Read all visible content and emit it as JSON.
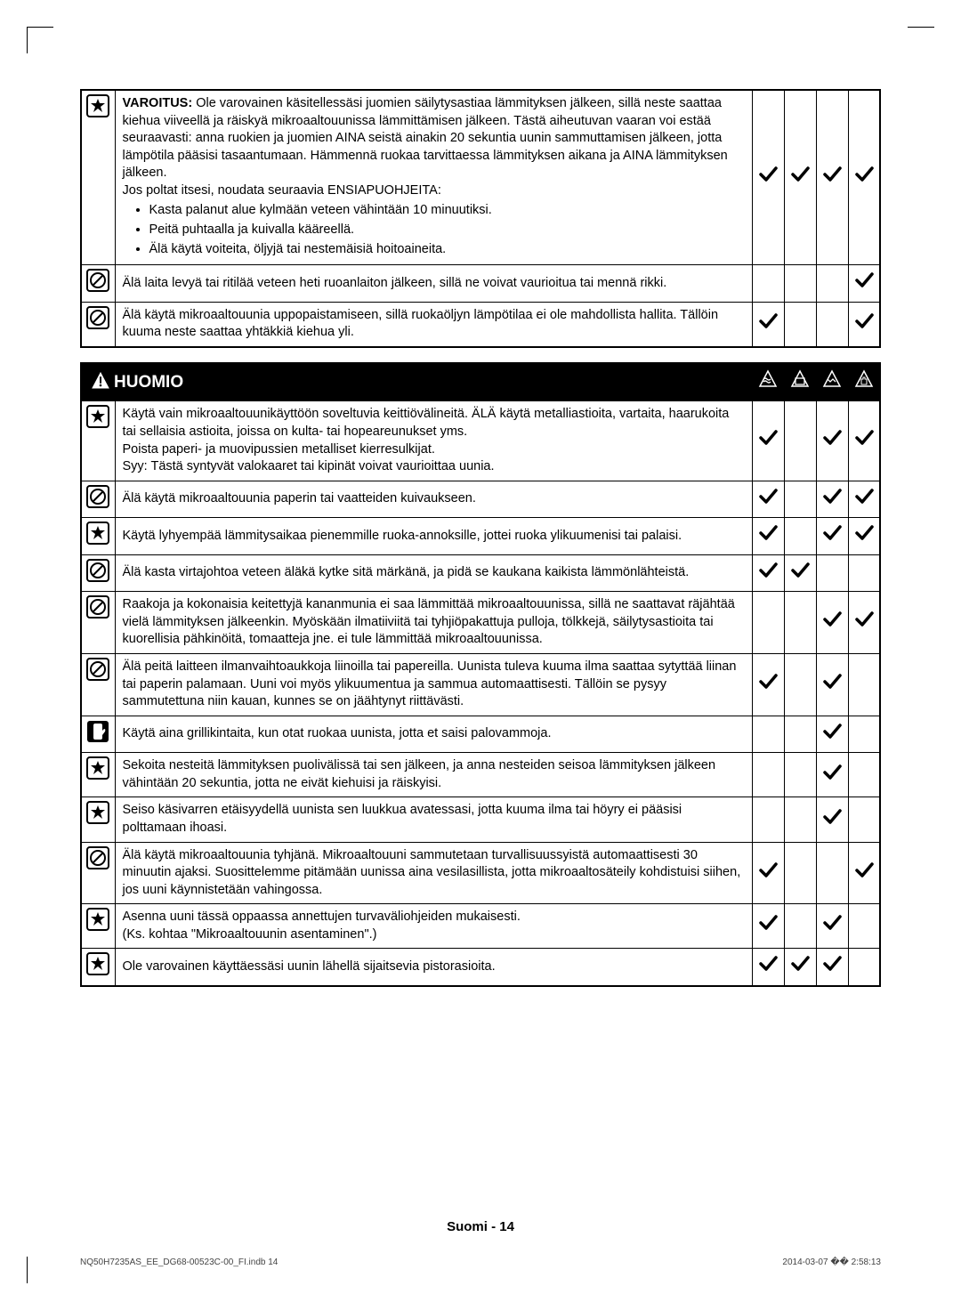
{
  "colors": {
    "border": "#000000",
    "bg": "#ffffff",
    "headerBg": "#000000",
    "headerFg": "#ffffff",
    "checkStroke": "#000000"
  },
  "t1": {
    "rows": [
      {
        "icon": "star",
        "html": "<b>VAROITUS:</b> Ole varovainen käsitellessäsi juomien säilytysastiaa lämmityksen jälkeen, sillä neste saattaa kiehua viiveellä ja räiskyä mikroaaltouunissa lämmittämisen jälkeen. Tästä aiheutuvan vaaran voi estää seuraavasti: anna ruokien ja juomien AINA seistä ainakin 20 sekuntia uunin sammuttamisen jälkeen, jotta lämpötila pääsisi tasaantumaan. Hämmennä ruokaa tarvittaessa lämmityksen aikana ja AINA lämmityksen jälkeen.<br>Jos poltat itsesi, noudata seuraavia ENSIAPUOHJEITA:",
        "bullets": [
          "Kasta palanut alue kylmään veteen vähintään 10 minuutiksi.",
          "Peitä puhtaalla ja kuivalla kääreellä.",
          "Älä käytä voiteita, öljyjä tai nestemäisiä hoitoaineita."
        ],
        "checks": [
          true,
          true,
          true,
          true
        ]
      },
      {
        "icon": "prohibit",
        "html": "Älä laita levyä tai ritilää veteen heti ruoanlaiton jälkeen, sillä ne voivat vaurioitua tai mennä rikki.",
        "checks": [
          false,
          false,
          false,
          true
        ]
      },
      {
        "icon": "prohibit",
        "html": "Älä käytä mikroaaltouunia uppopaistamiseen, sillä ruokaöljyn lämpötilaa ei ole mahdollista hallita. Tällöin kuuma neste saattaa yhtäkkiä kiehua yli.",
        "checks": [
          true,
          false,
          false,
          true
        ]
      }
    ]
  },
  "t2": {
    "header": "HUOMIO",
    "rows": [
      {
        "icon": "star",
        "html": "Käytä vain mikroaaltouunikäyttöön soveltuvia keittiövälineitä. ÄLÄ käytä metalliastioita, vartaita, haarukoita tai sellaisia astioita, joissa on kulta- tai hopeareunukset yms.<br>Poista paperi- ja muovipussien metalliset kierresulkijat.<br>Syy: Tästä syntyvät valokaaret tai kipinät voivat vaurioittaa uunia.",
        "checks": [
          true,
          false,
          true,
          true
        ]
      },
      {
        "icon": "prohibit",
        "html": "Älä käytä mikroaaltouunia paperin tai vaatteiden kuivaukseen.",
        "checks": [
          true,
          false,
          true,
          true
        ]
      },
      {
        "icon": "star",
        "html": "Käytä lyhyempää lämmitysaikaa pienemmille ruoka-annoksille, jottei ruoka ylikuumenisi tai palaisi.",
        "checks": [
          true,
          false,
          true,
          true
        ]
      },
      {
        "icon": "prohibit",
        "html": "Älä kasta virtajohtoa veteen äläkä kytke sitä märkänä, ja pidä se kaukana kaikista lämmönlähteistä.",
        "checks": [
          true,
          true,
          false,
          false
        ]
      },
      {
        "icon": "prohibit",
        "html": "Raakoja ja kokonaisia keitettyjä kananmunia ei saa lämmittää mikroaaltouunissa, sillä ne saattavat räjähtää vielä lämmityksen jälkeenkin. Myöskään ilmatiiviitä tai tyhjiöpakattuja pulloja, tölkkejä, säilytysastioita tai kuorellisia pähkinöitä, tomaatteja jne. ei tule lämmittää mikroaaltouunissa.",
        "checks": [
          false,
          false,
          true,
          true
        ]
      },
      {
        "icon": "prohibit",
        "html": "Älä peitä laitteen ilmanvaihtoaukkoja liinoilla tai papereilla. Uunista tuleva kuuma ilma saattaa sytyttää liinan tai paperin palamaan. Uuni voi myös ylikuumentua ja sammua automaattisesti. Tällöin se pysyy sammutettuna niin kauan, kunnes se on jäähtynyt riittävästi.",
        "checks": [
          true,
          false,
          true,
          false
        ]
      },
      {
        "icon": "glove",
        "html": "Käytä aina grillikintaita, kun otat ruokaa uunista, jotta et saisi palovammoja.",
        "checks": [
          false,
          false,
          true,
          false
        ]
      },
      {
        "icon": "star",
        "html": "Sekoita nesteitä lämmityksen puolivälissä tai sen jälkeen, ja anna nesteiden seisoa lämmityksen jälkeen vähintään 20 sekuntia, jotta ne eivät kiehuisi ja räiskyisi.",
        "checks": [
          false,
          false,
          true,
          false
        ]
      },
      {
        "icon": "star",
        "html": "Seiso käsivarren etäisyydellä uunista sen luukkua avatessasi, jotta kuuma ilma tai höyry ei pääsisi polttamaan ihoasi.",
        "checks": [
          false,
          false,
          true,
          false
        ]
      },
      {
        "icon": "prohibit",
        "html": "Älä käytä mikroaaltouunia tyhjänä. Mikroaaltouuni sammutetaan turvallisuussyistä automaattisesti 30 minuutin ajaksi. Suosittelemme pitämään uunissa aina vesilasillista, jotta mikroaaltosäteily kohdistuisi siihen, jos uuni käynnistetään vahingossa.",
        "checks": [
          true,
          false,
          false,
          true
        ]
      },
      {
        "icon": "star",
        "html": "Asenna uuni tässä oppaassa annettujen turvaväliohjeiden mukaisesti.<br>(Ks. kohtaa \"Mikroaaltouunin asentaminen\".)",
        "checks": [
          true,
          false,
          true,
          false
        ]
      },
      {
        "icon": "star",
        "html": "Ole varovainen käyttäessäsi uunin lähellä sijaitsevia pistorasioita.",
        "checks": [
          true,
          true,
          true,
          false
        ]
      }
    ]
  },
  "footer": "Suomi - 14",
  "printLeft": "NQ50H7235AS_EE_DG68-00523C-00_FI.indb   14",
  "printRight": "2014-03-07   �� 2:58:13"
}
